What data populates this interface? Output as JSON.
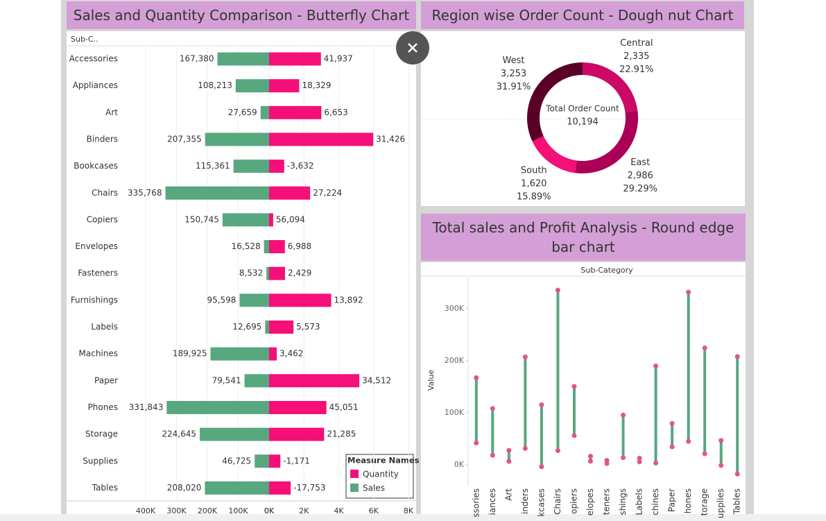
{
  "chart_data": [
    {
      "type": "butterfly",
      "title": "Sales and Quantity Comparison - Butterfly Chart",
      "row_header": "Sub-C..",
      "legend_title": "Measure Names",
      "categories": [
        "Accessories",
        "Appliances",
        "Art",
        "Binders",
        "Bookcases",
        "Chairs",
        "Copiers",
        "Envelopes",
        "Fasteners",
        "Furnishings",
        "Labels",
        "Machines",
        "Paper",
        "Phones",
        "Storage",
        "Supplies",
        "Tables"
      ],
      "series": [
        {
          "name": "Quantity",
          "color": "#f50f78",
          "values": [
            2976,
            1729,
            3000,
            5974,
            868,
            2356,
            234,
            906,
            914,
            3563,
            1400,
            440,
            5178,
            3289,
            3158,
            647,
            1241
          ],
          "bar_labels": [
            "41,937",
            "18,329",
            "6,653",
            "31,426",
            "-3,632",
            "27,224",
            "56,094",
            "6,988",
            "2,429",
            "13,892",
            "5,573",
            "3,462",
            "34,512",
            "45,051",
            "21,285",
            "-1,171",
            "-17,753"
          ]
        },
        {
          "name": "Sales",
          "color": "#57a77f",
          "values": [
            167380,
            108213,
            27659,
            207355,
            115361,
            335768,
            150745,
            16528,
            8532,
            95598,
            12695,
            189925,
            79541,
            331843,
            224645,
            46725,
            208020
          ],
          "value_labels": [
            "167,380",
            "108,213",
            "27,659",
            "207,355",
            "115,361",
            "335,768",
            "150,745",
            "16,528",
            "8,532",
            "95,598",
            "12,695",
            "189,925",
            "79,541",
            "331,843",
            "224,645",
            "46,725",
            "208,020"
          ]
        }
      ],
      "xlim": [
        0,
        400000
      ],
      "xticks": [
        {
          "value": 400000,
          "label": "400K"
        },
        {
          "value": 300000,
          "label": "300K"
        },
        {
          "value": 200000,
          "label": "200K"
        },
        {
          "value": 100000,
          "label": "100K"
        },
        {
          "value": 0,
          "label": "0K"
        }
      ],
      "x2lim": [
        0,
        8000
      ],
      "x2ticks": [
        {
          "value": 0,
          "label": "0K"
        },
        {
          "value": 2000,
          "label": "2K"
        },
        {
          "value": 4000,
          "label": "4K"
        },
        {
          "value": 6000,
          "label": "6K"
        },
        {
          "value": 8000,
          "label": "8K"
        }
      ],
      "grid": true
    },
    {
      "type": "donut",
      "title": "Region wise Order Count - Dough nut Chart",
      "center_label": "Total Order Count",
      "total": 10194,
      "total_label": "10,194",
      "categories": [
        "Central",
        "East",
        "South",
        "West"
      ],
      "values": [
        2335,
        2986,
        1620,
        3253
      ],
      "value_labels": [
        "2,335",
        "2,986",
        "1,620",
        "3,253"
      ],
      "percents": [
        22.91,
        29.29,
        15.89,
        31.91
      ],
      "percent_labels": [
        "22.91%",
        "29.29%",
        "15.89%",
        "31.91%"
      ],
      "colors": [
        "#cc0a66",
        "#ab0056",
        "#f50f78",
        "#5a0028"
      ]
    },
    {
      "type": "dumbbell",
      "title": "Total sales and Profit Analysis - Round edge bar chart",
      "x_label": "Sub-Category",
      "y_label": "Value",
      "categories": [
        "ssories",
        "iances",
        "Art",
        "inders",
        "kcases",
        "Chairs",
        "opiers",
        "elopes",
        "teners",
        "shings",
        "Labels",
        "chines",
        "Paper",
        "hones",
        "torage",
        "upplies",
        "Tables"
      ],
      "series": [
        {
          "color": "#e25586",
          "values": [
            167380,
            108213,
            27659,
            207355,
            115361,
            335768,
            150745,
            16528,
            8532,
            95598,
            12695,
            189925,
            79541,
            331843,
            224645,
            46725,
            208020
          ]
        },
        {
          "color": "#e25586",
          "values": [
            41937,
            18329,
            6653,
            31426,
            -3632,
            27224,
            56094,
            6988,
            2429,
            13892,
            5573,
            3462,
            34512,
            45051,
            21285,
            -1171,
            -17753
          ]
        }
      ],
      "line_color": "#57a77f",
      "ylim": [
        -40000,
        360000
      ],
      "yticks": [
        {
          "value": 0,
          "label": "0K"
        },
        {
          "value": 100000,
          "label": "100K"
        },
        {
          "value": 200000,
          "label": "200K"
        },
        {
          "value": 300000,
          "label": "300K"
        }
      ]
    }
  ]
}
